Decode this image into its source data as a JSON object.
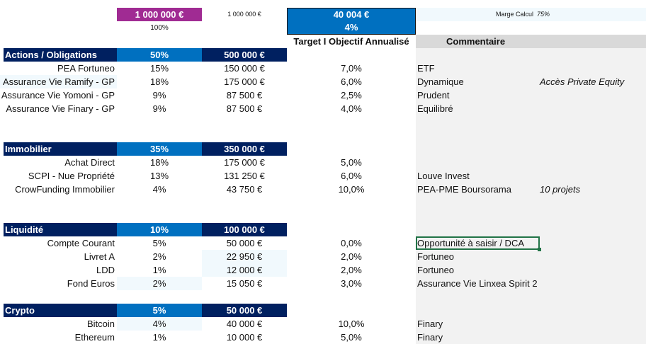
{
  "summary": {
    "total_allocated": "1 000 000 €",
    "total_allocated_pct": "100%",
    "total_reference": "1 000 000 €",
    "annual_return_amount": "40 004 €",
    "annual_return_pct": "4%",
    "marge_label": "Marge Calcul",
    "marge_value": "75%"
  },
  "headers": {
    "target": "Target I Objectif Annualisé",
    "comment": "Commentaire"
  },
  "sections": [
    {
      "name": "Actions / Obligations",
      "pct": "50%",
      "amount": "500 000 €",
      "items": [
        {
          "label": "PEA Fortuneo",
          "pct": "15%",
          "amount": "150 000 €",
          "target": "7,0%",
          "comment": "ETF",
          "note": ""
        },
        {
          "label": "Assurance Vie Ramify - GP",
          "pct": "18%",
          "amount": "175 000 €",
          "target": "6,0%",
          "comment": "Dynamique",
          "note": "Accès Private Equity"
        },
        {
          "label": "Assurance Vie Yomoni - GP",
          "pct": "9%",
          "amount": "87 500 €",
          "target": "2,5%",
          "comment": "Prudent",
          "note": ""
        },
        {
          "label": "Assurance Vie Finary - GP",
          "pct": "9%",
          "amount": "87 500 €",
          "target": "4,0%",
          "comment": "Equilibré",
          "note": ""
        }
      ]
    },
    {
      "name": "Immobilier",
      "pct": "35%",
      "amount": "350 000 €",
      "items": [
        {
          "label": "Achat Direct",
          "pct": "18%",
          "amount": "175 000 €",
          "target": "5,0%",
          "comment": "",
          "note": ""
        },
        {
          "label": "SCPI - Nue Propriété",
          "pct": "13%",
          "amount": "131 250 €",
          "target": "6,0%",
          "comment": "Louve Invest",
          "note": ""
        },
        {
          "label": "CrowFunding Immobilier",
          "pct": "4%",
          "amount": "43 750 €",
          "target": "10,0%",
          "comment": "PEA-PME Boursorama",
          "note": "10 projets"
        }
      ]
    },
    {
      "name": "Liquidité",
      "pct": "10%",
      "amount": "100 000 €",
      "items": [
        {
          "label": "Compte Courant",
          "pct": "5%",
          "amount": "50 000 €",
          "target": "0,0%",
          "comment": "Opportunité à saisir / DCA",
          "note": ""
        },
        {
          "label": "Livret A",
          "pct": "2%",
          "amount": "22 950 €",
          "target": "2,0%",
          "comment": "Fortuneo",
          "note": ""
        },
        {
          "label": "LDD",
          "pct": "1%",
          "amount": "12 000 €",
          "target": "2,0%",
          "comment": "Fortuneo",
          "note": ""
        },
        {
          "label": "Fond Euros",
          "pct": "2%",
          "amount": "15 050 €",
          "target": "3,0%",
          "comment": "Assurance Vie Linxea Spirit 2",
          "note": ""
        }
      ]
    },
    {
      "name": "Crypto",
      "pct": "5%",
      "amount": "50 000 €",
      "items": [
        {
          "label": "Bitcoin",
          "pct": "4%",
          "amount": "40 000 €",
          "target": "10,0%",
          "comment": "Finary",
          "note": ""
        },
        {
          "label": "Ethereum",
          "pct": "1%",
          "amount": "10 000 €",
          "target": "5,0%",
          "comment": "Finary",
          "note": ""
        }
      ]
    }
  ],
  "colors": {
    "navy": "#002060",
    "blue": "#0070c0",
    "purple": "#a02b93",
    "selection": "#217346"
  }
}
